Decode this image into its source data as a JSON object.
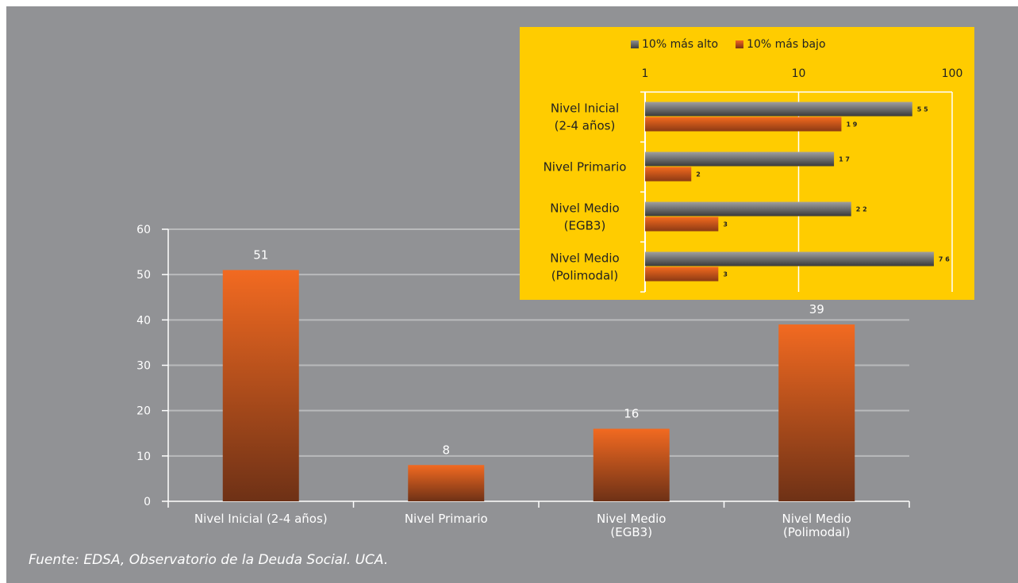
{
  "source_note": "Fuente: EDSA, Observatorio de la Deuda Social. UCA.",
  "colors": {
    "background": "#919295",
    "inset_background": "#ffcc00",
    "bar_top": "#f26a21",
    "bar_bottom": "#6e3116",
    "gray_top": "#959595",
    "gray_bottom": "#3b3b3b",
    "text_light": "#ffffff",
    "text_dark": "#222222"
  },
  "chart_data": [
    {
      "type": "bar",
      "categories": [
        "Nivel Inicial (2-4 años)",
        "Nivel Primario",
        "Nivel Medio\n(EGB3)",
        "Nivel Medio\n(Polimodal)"
      ],
      "values": [
        51,
        8,
        16,
        39
      ],
      "data_labels": [
        "51",
        "8",
        "16",
        "39"
      ],
      "ylim": [
        0,
        60
      ],
      "yticks": [
        0,
        10,
        20,
        30,
        40,
        50,
        60
      ],
      "grid": true
    },
    {
      "type": "bar",
      "orientation": "horizontal",
      "x_scale": "log",
      "xlim": [
        1,
        100
      ],
      "xticks": [
        "1",
        "10",
        "100"
      ],
      "categories": [
        "Nivel Inicial\n(2-4 años)",
        "Nivel Primario",
        "Nivel Medio\n(EGB3)",
        "Nivel Medio\n(Polimodal)"
      ],
      "series": [
        {
          "name": "10% más alto",
          "values": [
            55,
            17,
            22,
            76
          ],
          "labels": [
            "5 5",
            "1 7",
            "2 2",
            "7 6"
          ]
        },
        {
          "name": "10% más bajo",
          "values": [
            19,
            2,
            3,
            3
          ],
          "labels": [
            "1 9",
            "2",
            "3",
            "3"
          ]
        }
      ],
      "legend": "top",
      "grid": true
    }
  ]
}
